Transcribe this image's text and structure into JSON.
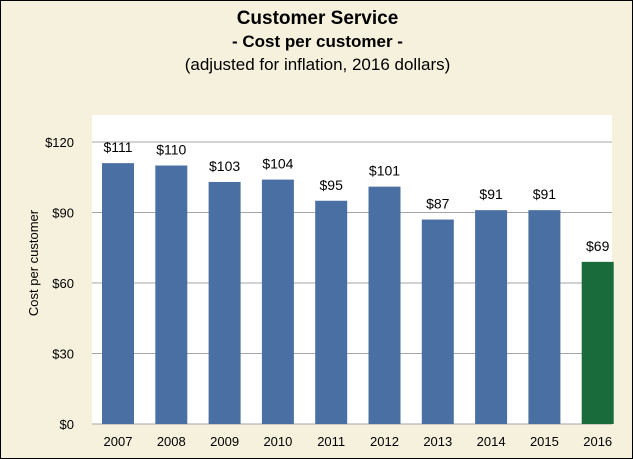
{
  "chart_data": {
    "type": "bar",
    "title": "Customer Service",
    "subtitle": "- Cost per customer -",
    "note": "(adjusted for inflation, 2016 dollars)",
    "xlabel": "",
    "ylabel": "Cost per customer",
    "categories": [
      "2007",
      "2008",
      "2009",
      "2010",
      "2011",
      "2012",
      "2013",
      "2014",
      "2015",
      "2016"
    ],
    "values": [
      111,
      110,
      103,
      104,
      95,
      101,
      87,
      91,
      91,
      69
    ],
    "data_labels": [
      "$111",
      "$110",
      "$103",
      "$104",
      "$95",
      "$101",
      "$87",
      "$91",
      "$91",
      "$69"
    ],
    "ylim": [
      0,
      120
    ],
    "yticks": [
      0,
      30,
      60,
      90,
      120
    ],
    "ytick_labels": [
      "$0",
      "$30",
      "$60",
      "$90",
      "$120"
    ],
    "grid": true,
    "legend": "none",
    "colors": {
      "bar": "#4a70a3",
      "highlight_bar": "#1a6b3c",
      "background": "#f5f1dc",
      "plot_area": "#ffffff",
      "gridline": "#a6a6a6"
    },
    "highlight_index": 9
  }
}
